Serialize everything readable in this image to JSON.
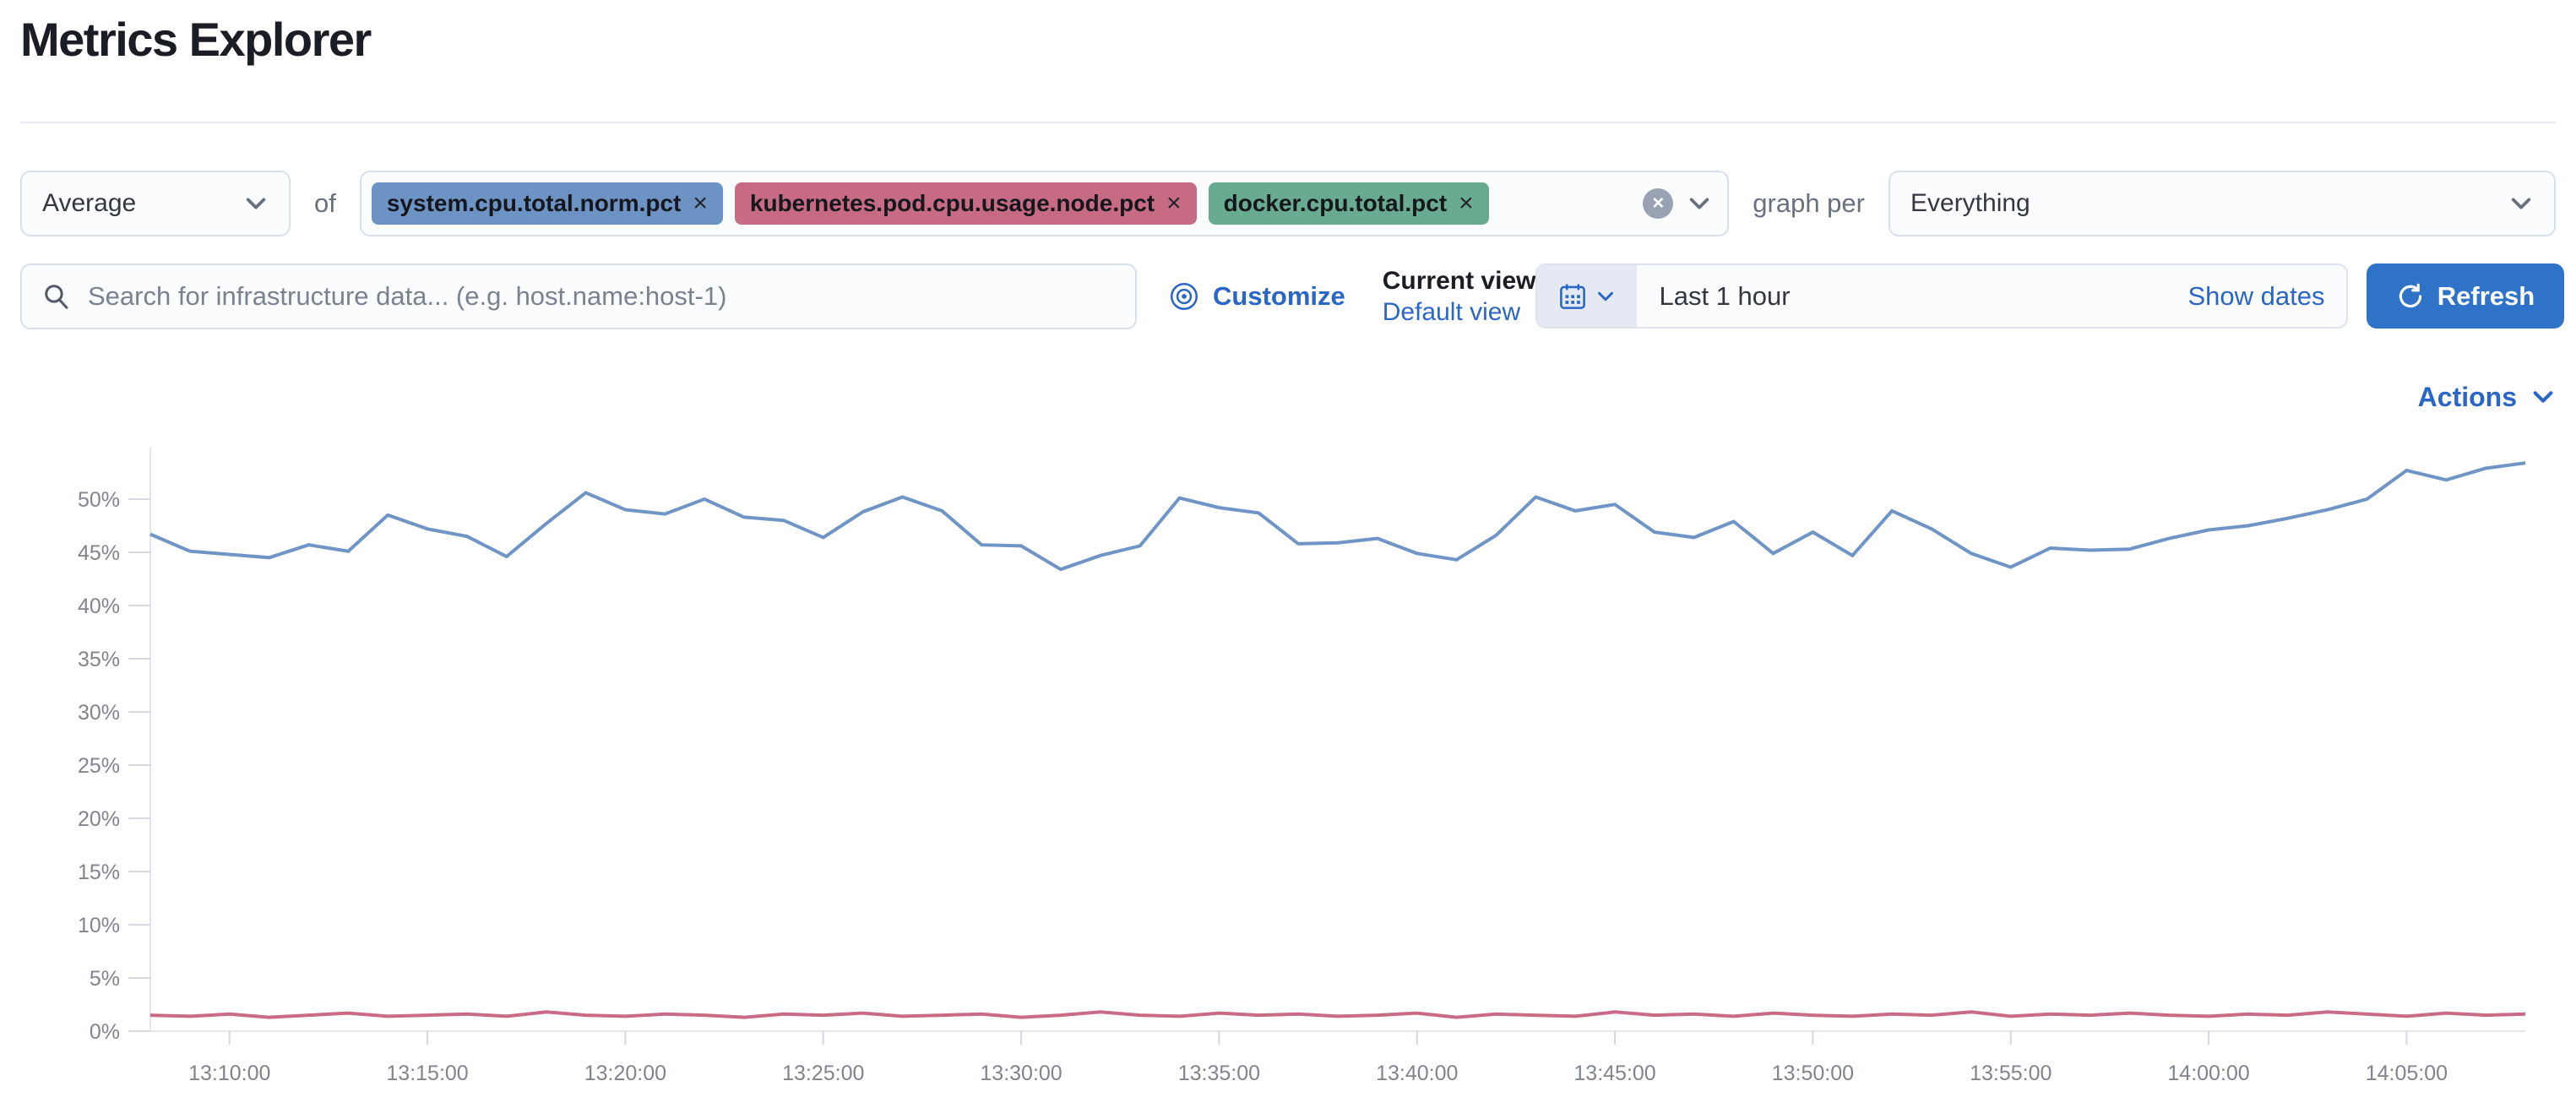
{
  "page": {
    "title": "Metrics Explorer"
  },
  "icons": {
    "close": "×"
  },
  "colors": {
    "accent_blue": "#2a66c6",
    "button_blue": "#2f73c9",
    "tag_blue": "#6d93c4",
    "tag_pink": "#c76b85",
    "tag_green": "#69ab91",
    "line_blue": "#6f94c6",
    "line_pink": "#c96b84"
  },
  "controls": {
    "aggregation": {
      "value": "Average"
    },
    "of_label": "of",
    "metrics": [
      {
        "label": "system.cpu.total.norm.pct",
        "color": "#6d93c4"
      },
      {
        "label": "kubernetes.pod.cpu.usage.node.pct",
        "color": "#c76b85"
      },
      {
        "label": "docker.cpu.total.pct",
        "color": "#69ab91"
      }
    ],
    "graph_per_label": "graph per",
    "group_by": {
      "value": "Everything"
    },
    "search": {
      "placeholder": "Search for infrastructure data... (e.g. host.name:host-1)",
      "value": ""
    },
    "customize_label": "Customize",
    "current_view_label": "Current view",
    "view_value": "Default view",
    "time_range": {
      "value": "Last 1 hour",
      "show_dates_label": "Show dates"
    },
    "refresh_label": "Refresh",
    "actions_label": "Actions"
  },
  "chart_data": {
    "type": "line",
    "title": "",
    "xlabel": "",
    "ylabel": "",
    "y_unit": "%",
    "ylim": [
      0,
      54
    ],
    "y_tick_step": 5,
    "y_tick_labels": [
      "0%",
      "5%",
      "10%",
      "15%",
      "20%",
      "25%",
      "30%",
      "35%",
      "40%",
      "45%",
      "50%"
    ],
    "x_start_label": "13:08:00",
    "x_interval_seconds": 60,
    "x_tick_labels": [
      "13:10:00",
      "13:15:00",
      "13:20:00",
      "13:25:00",
      "13:30:00",
      "13:35:00",
      "13:40:00",
      "13:45:00",
      "13:50:00",
      "13:55:00",
      "14:00:00",
      "14:05:00"
    ],
    "grid": false,
    "legend": "none",
    "series": [
      {
        "name": "system.cpu.total.norm.pct",
        "color": "#6f94c6",
        "values": [
          46.7,
          45.1,
          44.8,
          44.5,
          45.7,
          45.1,
          48.5,
          47.2,
          46.5,
          44.6,
          47.7,
          50.6,
          49.0,
          48.6,
          50.0,
          48.3,
          48.0,
          46.4,
          48.8,
          50.2,
          48.9,
          45.7,
          45.6,
          43.4,
          44.7,
          45.6,
          50.1,
          49.2,
          48.7,
          45.8,
          45.9,
          46.3,
          44.9,
          44.3,
          46.6,
          50.2,
          48.9,
          49.5,
          46.9,
          46.4,
          47.9,
          44.9,
          46.9,
          44.7,
          48.9,
          47.2,
          44.9,
          43.6,
          45.4,
          45.2,
          45.3,
          46.3,
          47.1,
          47.5,
          48.2,
          49.0,
          50.0,
          52.7,
          51.8,
          52.9,
          53.4
        ]
      },
      {
        "name": "kubernetes.pod.cpu.usage.node.pct",
        "color": "#c96b84",
        "values": [
          1.5,
          1.4,
          1.6,
          1.3,
          1.5,
          1.7,
          1.4,
          1.5,
          1.6,
          1.4,
          1.8,
          1.5,
          1.4,
          1.6,
          1.5,
          1.3,
          1.6,
          1.5,
          1.7,
          1.4,
          1.5,
          1.6,
          1.3,
          1.5,
          1.8,
          1.5,
          1.4,
          1.7,
          1.5,
          1.6,
          1.4,
          1.5,
          1.7,
          1.3,
          1.6,
          1.5,
          1.4,
          1.8,
          1.5,
          1.6,
          1.4,
          1.7,
          1.5,
          1.4,
          1.6,
          1.5,
          1.8,
          1.4,
          1.6,
          1.5,
          1.7,
          1.5,
          1.4,
          1.6,
          1.5,
          1.8,
          1.6,
          1.4,
          1.7,
          1.5,
          1.6
        ]
      }
    ]
  }
}
